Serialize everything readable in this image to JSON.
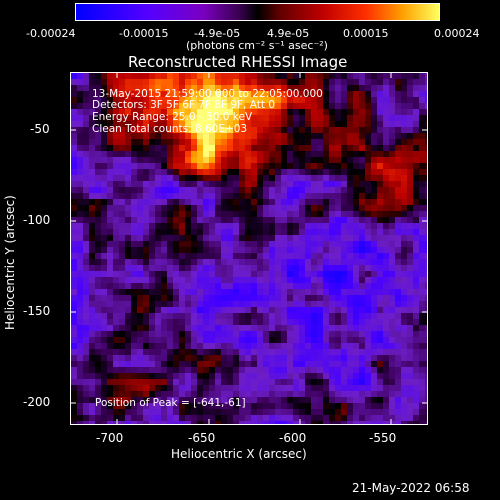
{
  "colorbar": {
    "tick_labels": [
      "-0.00024",
      "-0.00015",
      "-4.9e-05",
      "4.9e-05",
      "0.00015",
      "0.00024"
    ],
    "units": "(photons cm⁻² s⁻¹ asec⁻²)"
  },
  "title": "Reconstructed RHESSI Image",
  "info": {
    "line1": "13-May-2015 21:59:00.000 to 22:05:00.000",
    "line2": "Detectors: 3F 5F 6F 7F 8F 9F, Att 0",
    "line3": "Energy Range: 25.0 - 50.0 keV",
    "line4": "Clean    Total counts: 8.60E+03",
    "peak": "Position of Peak = [-641,-61]"
  },
  "axes": {
    "xlabel": "Heliocentric X (arcsec)",
    "ylabel": "Heliocentric Y (arcsec)",
    "xticks": [
      "-700",
      "-650",
      "-600",
      "-550"
    ],
    "yticks": [
      "-50",
      "-100",
      "-150",
      "-200"
    ]
  },
  "footer": {
    "timestamp": "21-May-2022 06:58"
  }
}
